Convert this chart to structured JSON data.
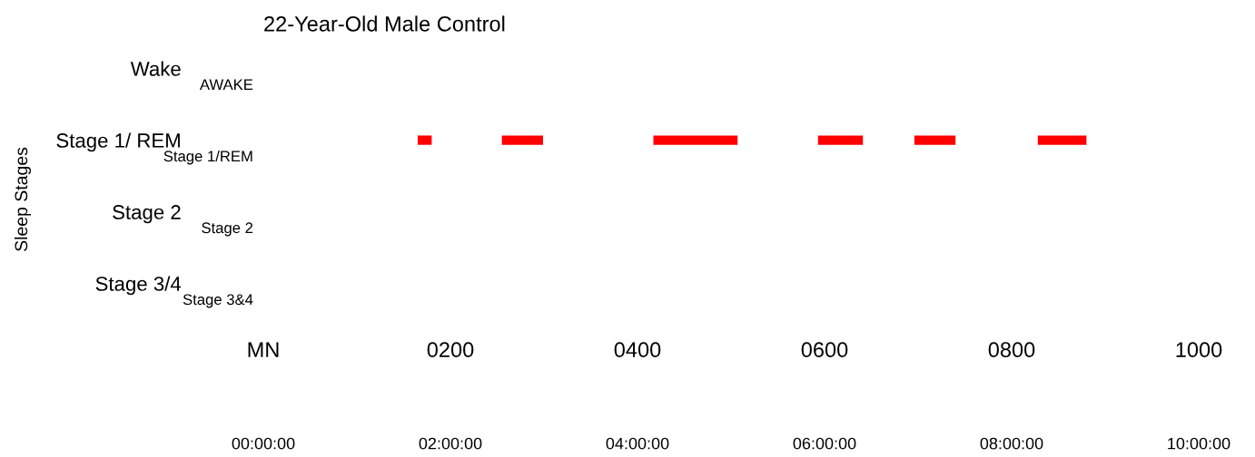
{
  "chart_data": {
    "type": "bar",
    "orientation": "horizontal",
    "title": "22-Year-Old Male Control",
    "ylabel": "Sleep Stages",
    "categories": [
      "Wake",
      "Stage 1/ REM",
      "Stage 2",
      "Stage 3/4"
    ],
    "y2_categories": [
      "AWAKE",
      "Stage 1/REM",
      "Stage 2",
      "Stage 3&4"
    ],
    "series": [
      {
        "color": "#ff0000",
        "base": [
          null,
          1.65,
          null,
          null
        ],
        "values": [
          null,
          0.15,
          null,
          null
        ]
      },
      {
        "color": "#ff0000",
        "base": [
          null,
          2.55,
          null,
          null
        ],
        "values": [
          null,
          0.44,
          null,
          null
        ]
      },
      {
        "color": "#ff0000",
        "base": [
          null,
          4.17,
          null,
          null
        ],
        "values": [
          null,
          0.9,
          null,
          null
        ]
      },
      {
        "color": "#ff0000",
        "base": [
          null,
          5.93,
          null,
          null
        ],
        "values": [
          null,
          0.48,
          null,
          null
        ]
      },
      {
        "color": "#ff0000",
        "base": [
          null,
          6.96,
          null,
          null
        ],
        "values": [
          null,
          0.44,
          null,
          null
        ]
      },
      {
        "color": "#ff0000",
        "base": [
          null,
          8.28,
          null,
          null
        ],
        "values": [
          null,
          0.52,
          null,
          null
        ]
      }
    ],
    "xlim": [
      0,
      10
    ],
    "xticks": [
      {
        "value": 0,
        "label": "00:00:00"
      },
      {
        "value": 2,
        "label": "02:00:00"
      },
      {
        "value": 4,
        "label": "04:00:00"
      },
      {
        "value": 6,
        "label": "06:00:00"
      },
      {
        "value": 8,
        "label": "08:00:00"
      },
      {
        "value": 10,
        "label": "10:00:00"
      }
    ],
    "x2lim": [
      0,
      1000
    ],
    "x2ticks": [
      {
        "value": 0,
        "label": "MN"
      },
      {
        "value": 200,
        "label": "0200"
      },
      {
        "value": 400,
        "label": "0400"
      },
      {
        "value": 600,
        "label": "0600"
      },
      {
        "value": 800,
        "label": "0800"
      },
      {
        "value": 1000,
        "label": "1000"
      }
    ]
  }
}
